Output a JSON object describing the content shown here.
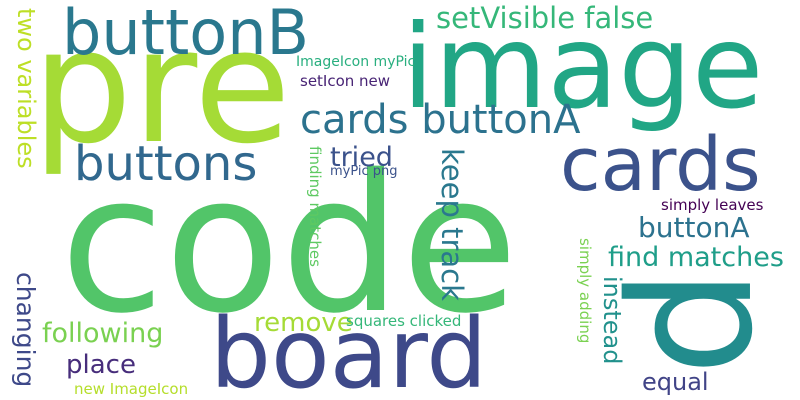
{
  "words": [
    {
      "text": "code",
      "color": "#52c569"
    },
    {
      "text": "pre",
      "color": "#a5db36"
    },
    {
      "text": "image",
      "color": "#21a685"
    },
    {
      "text": "board",
      "color": "#3e4989"
    },
    {
      "text": "p",
      "color": "#228c8d"
    },
    {
      "text": "buttonB",
      "color": "#2a788e"
    },
    {
      "text": "cards",
      "color": "#3b528b"
    },
    {
      "text": "buttons",
      "color": "#31688e"
    },
    {
      "text": "cards buttonA",
      "color": "#2c728e"
    },
    {
      "text": "setVisible false",
      "color": "#35b779"
    },
    {
      "text": "two variables",
      "color": "#bddf26"
    },
    {
      "text": "tried",
      "color": "#3b528b"
    },
    {
      "text": "keep track",
      "color": "#2a788e"
    },
    {
      "text": "instead",
      "color": "#21918c"
    },
    {
      "text": "find matches",
      "color": "#1f9e89"
    },
    {
      "text": "buttonA",
      "color": "#2c728e"
    },
    {
      "text": "changing",
      "color": "#3e4989"
    },
    {
      "text": "following",
      "color": "#7ad151"
    },
    {
      "text": "remove",
      "color": "#a5db36"
    },
    {
      "text": "place",
      "color": "#472d7b"
    },
    {
      "text": "equal",
      "color": "#414487"
    },
    {
      "text": "simply leaves",
      "color": "#440154"
    },
    {
      "text": "finding matches",
      "color": "#5ec962"
    },
    {
      "text": "simply adding",
      "color": "#7ad151"
    },
    {
      "text": "ImageIcon myPic",
      "color": "#29af7f"
    },
    {
      "text": "setIcon new",
      "color": "#482475"
    },
    {
      "text": "myPic png",
      "color": "#3b528b"
    },
    {
      "text": "squares clicked",
      "color": "#35b779"
    },
    {
      "text": "new ImageIcon",
      "color": "#b5de2b"
    }
  ]
}
